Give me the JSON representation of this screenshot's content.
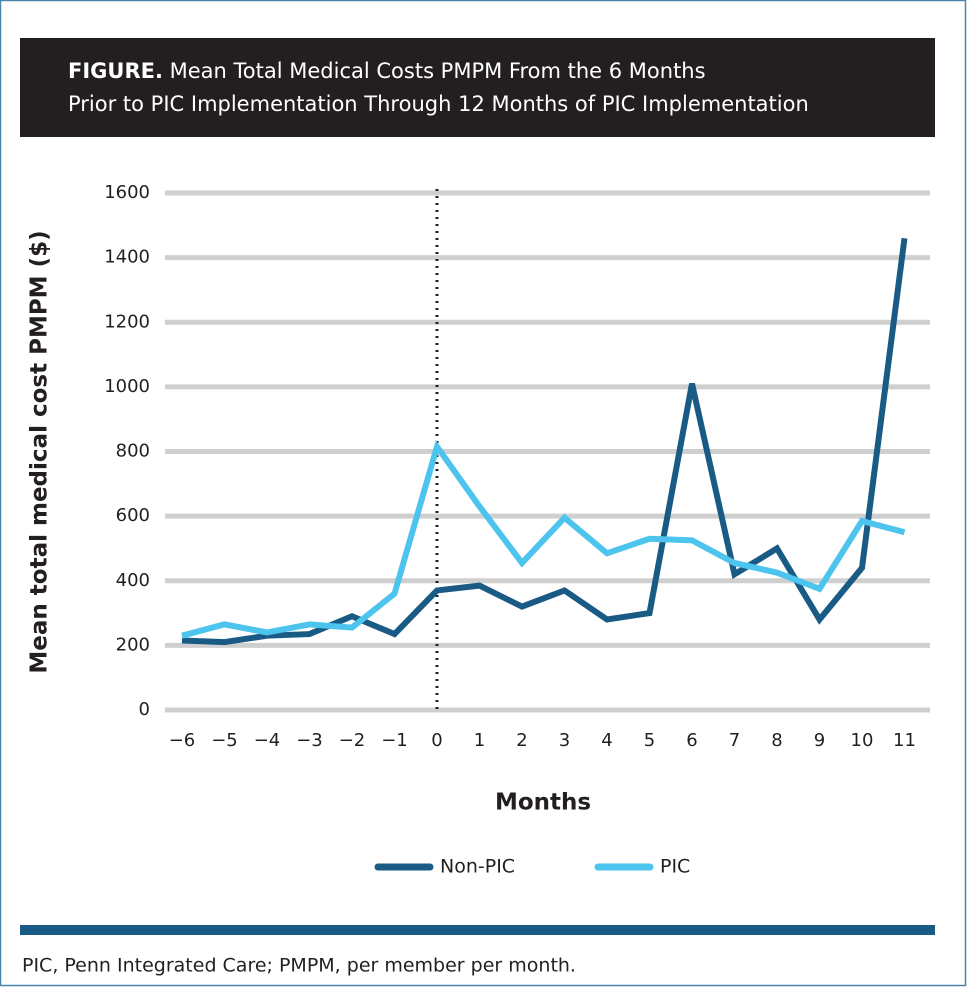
{
  "chart_data": {
    "type": "line",
    "title_label": "FIGURE.",
    "title": "Mean Total Medical Costs PMPM From the 6 Months Prior to PIC Implementation Through 12 Months of PIC Implementation",
    "x_label": "Months",
    "y_label": "Mean total medical cost PMPM ($)",
    "footnote": "PIC, Penn Integrated Care; PMPM, per member per month.",
    "x": [
      -6,
      -5,
      -4,
      -3,
      -2,
      -1,
      0,
      1,
      2,
      3,
      4,
      5,
      6,
      7,
      8,
      9,
      10,
      11
    ],
    "series": [
      {
        "name": "Non-PIC",
        "color": "#1a5b86",
        "values": [
          215,
          210,
          230,
          235,
          290,
          235,
          370,
          385,
          320,
          370,
          280,
          300,
          1010,
          420,
          500,
          280,
          440,
          1460
        ]
      },
      {
        "name": "PIC",
        "color": "#4cc4ee",
        "values": [
          230,
          265,
          240,
          265,
          255,
          360,
          815,
          630,
          455,
          595,
          485,
          530,
          525,
          455,
          425,
          375,
          585,
          550
        ]
      }
    ],
    "xlim": [
      -6.4,
      11.6
    ],
    "xticks": [
      {
        "value": -6,
        "label": "−6"
      },
      {
        "value": -5,
        "label": "−5"
      },
      {
        "value": -4,
        "label": "−4"
      },
      {
        "value": -3,
        "label": "−3"
      },
      {
        "value": -2,
        "label": "−2"
      },
      {
        "value": -1,
        "label": "−1"
      },
      0,
      1,
      2,
      3,
      4,
      5,
      6,
      7,
      8,
      9,
      10,
      11
    ],
    "ylim": [
      0,
      1600
    ],
    "yticks": [
      0,
      200,
      400,
      600,
      800,
      1000,
      1200,
      1400,
      1600
    ],
    "grid": true,
    "vline_x": 0,
    "legend": "bottom"
  }
}
